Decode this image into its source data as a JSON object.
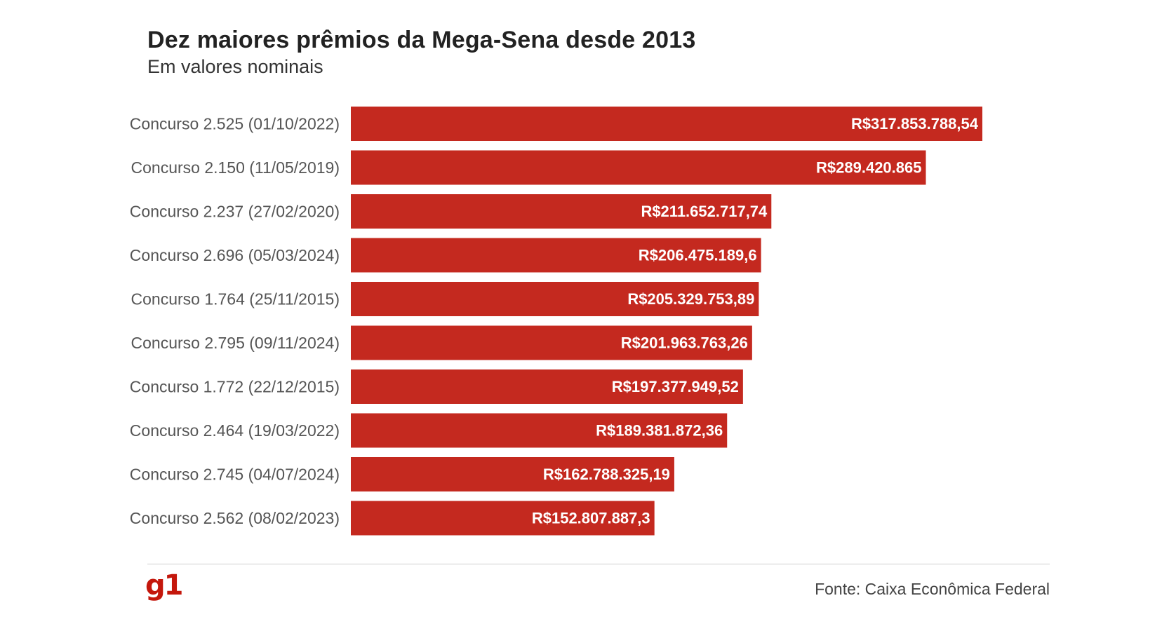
{
  "header": {
    "title": "Dez maiores prêmios da Mega-Sena desde 2013",
    "subtitle": "Em valores nominais"
  },
  "footer": {
    "logo": "g1",
    "source": "Fonte: Caixa Econômica Federal"
  },
  "colors": {
    "bar": "#c4291f",
    "bar_label": "#ffffff",
    "category_label": "#555555",
    "logo": "#c4170c"
  },
  "chart_data": {
    "type": "bar",
    "orientation": "horizontal",
    "title": "Dez maiores prêmios da Mega-Sena desde 2013",
    "subtitle": "Em valores nominais",
    "categories": [
      "Concurso 2.525 (01/10/2022)",
      "Concurso 2.150 (11/05/2019)",
      "Concurso 2.237 (27/02/2020)",
      "Concurso 2.696 (05/03/2024)",
      "Concurso 1.764 (25/11/2015)",
      "Concurso 2.795 (09/11/2024)",
      "Concurso 1.772 (22/12/2015)",
      "Concurso 2.464 (19/03/2022)",
      "Concurso 2.745 (04/07/2024)",
      "Concurso 2.562 (08/02/2023)"
    ],
    "values": [
      317853788.54,
      289420865,
      211652717.74,
      206475189.6,
      205329753.89,
      201963763.26,
      197377949.52,
      189381872.36,
      162788325.19,
      152807887.3
    ],
    "value_labels": [
      "R$317.853.788,54",
      "R$289.420.865",
      "R$211.652.717,74",
      "R$206.475.189,6",
      "R$205.329.753,89",
      "R$201.963.763,26",
      "R$197.377.949,52",
      "R$189.381.872,36",
      "R$162.788.325,19",
      "R$152.807.887,3"
    ],
    "xlim": [
      0,
      317853788.54
    ],
    "grid": false,
    "legend": "none",
    "source": "Fonte: Caixa Econômica Federal"
  }
}
